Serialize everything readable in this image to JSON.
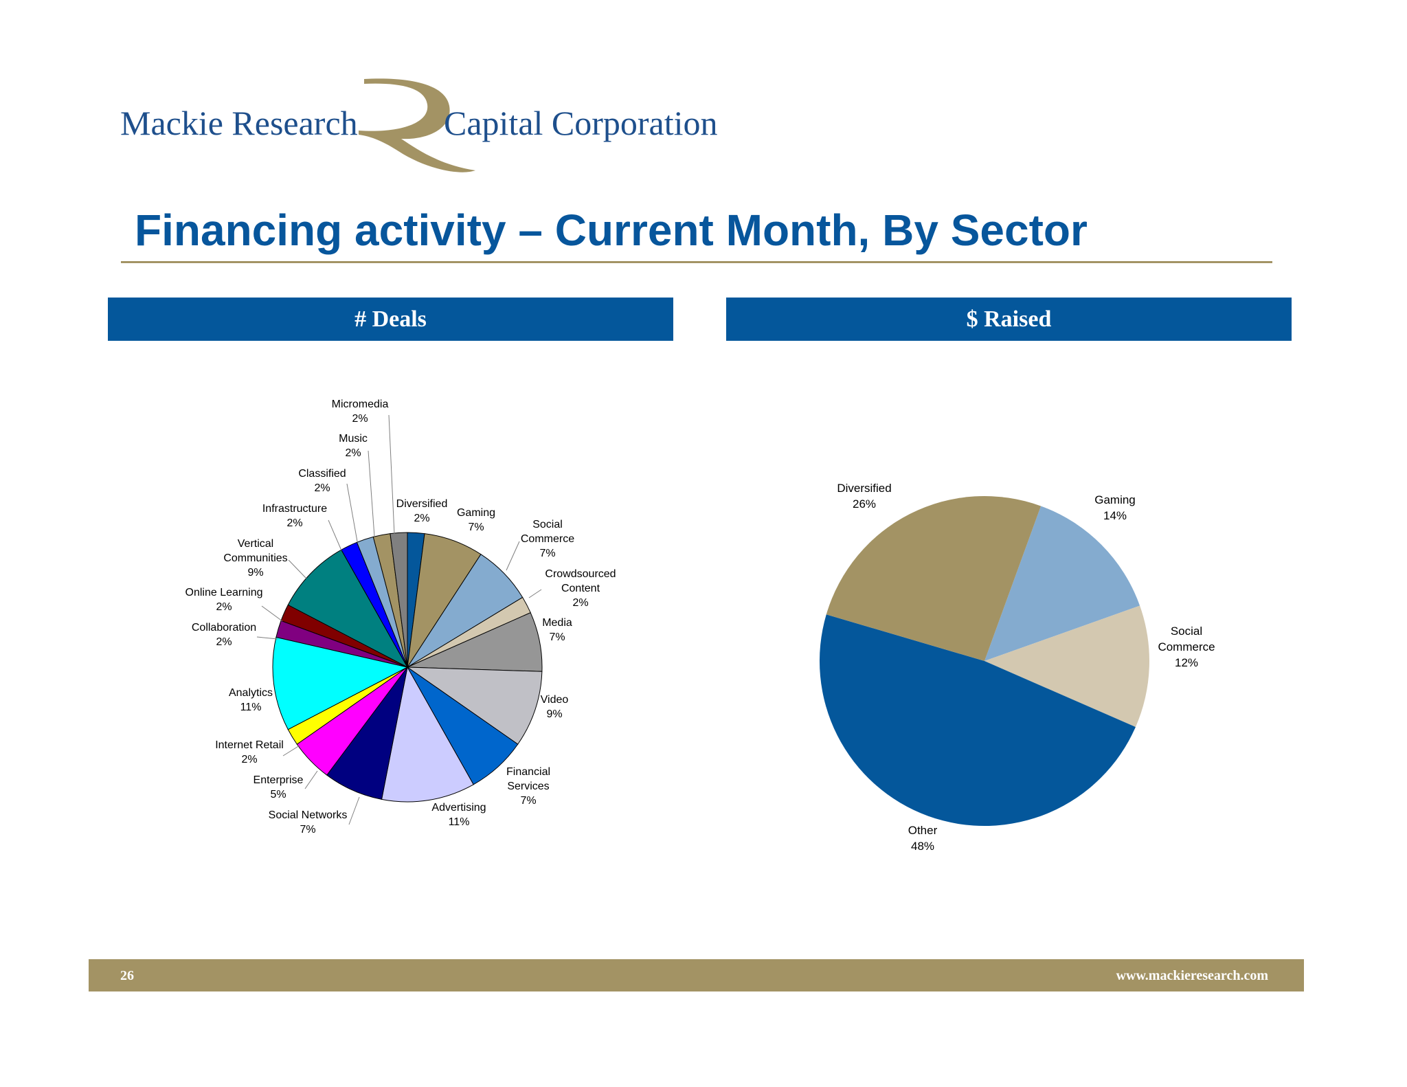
{
  "header": {
    "logo_left": "Mackie Research",
    "logo_right": "Capital Corporation",
    "title": "Financing activity – Current Month, By Sector"
  },
  "panels": {
    "left_title": "# Deals",
    "right_title": "$ Raised"
  },
  "chart_data": [
    {
      "type": "pie",
      "title": "# Deals",
      "slices": [
        {
          "label": "Diversified",
          "value": 2,
          "display": "2%",
          "color": "#04579b"
        },
        {
          "label": "Gaming",
          "value": 7,
          "display": "7%",
          "color": "#a39364"
        },
        {
          "label": "Social Commerce",
          "value": 7,
          "display": "7%",
          "color": "#84abcf"
        },
        {
          "label": "Crowdsourced Content",
          "value": 2,
          "display": "2%",
          "color": "#d3c8b0"
        },
        {
          "label": "Media",
          "value": 7,
          "display": "7%",
          "color": "#969696"
        },
        {
          "label": "Video",
          "value": 9,
          "display": "9%",
          "color": "#c0c0c6"
        },
        {
          "label": "Financial Services",
          "value": 7,
          "display": "7%",
          "color": "#0066cc"
        },
        {
          "label": "Advertising",
          "value": 11,
          "display": "11%",
          "color": "#ccccff"
        },
        {
          "label": "Social Networks",
          "value": 7,
          "display": "7%",
          "color": "#000080"
        },
        {
          "label": "Enterprise",
          "value": 5,
          "display": "5%",
          "color": "#ff00ff"
        },
        {
          "label": "Internet Retail",
          "value": 2,
          "display": "2%",
          "color": "#ffff00"
        },
        {
          "label": "Analytics",
          "value": 11,
          "display": "11%",
          "color": "#00ffff"
        },
        {
          "label": "Collaboration",
          "value": 2,
          "display": "2%",
          "color": "#800080"
        },
        {
          "label": "Online Learning",
          "value": 2,
          "display": "2%",
          "color": "#800000"
        },
        {
          "label": "Vertical Communities",
          "value": 9,
          "display": "9%",
          "color": "#008080"
        },
        {
          "label": "Infrastructure",
          "value": 2,
          "display": "2%",
          "color": "#0000ff"
        },
        {
          "label": "Classified",
          "value": 2,
          "display": "2%",
          "color": "#84abcf"
        },
        {
          "label": "Music",
          "value": 2,
          "display": "2%",
          "color": "#a39364"
        },
        {
          "label": "Micromedia",
          "value": 2,
          "display": "2%",
          "color": "#808080"
        }
      ]
    },
    {
      "type": "pie",
      "title": "$ Raised",
      "slices": [
        {
          "label": "Gaming",
          "value": 14,
          "display": "14%",
          "color": "#84abcf"
        },
        {
          "label": "Social Commerce",
          "value": 12,
          "display": "12%",
          "color": "#d3c8b0"
        },
        {
          "label": "Other",
          "value": 48,
          "display": "48%",
          "color": "#04579b"
        },
        {
          "label": "Diversified",
          "value": 26,
          "display": "26%",
          "color": "#a39364"
        }
      ]
    }
  ],
  "footer": {
    "page_number": "26",
    "website": "www.mackieresearch.com"
  }
}
